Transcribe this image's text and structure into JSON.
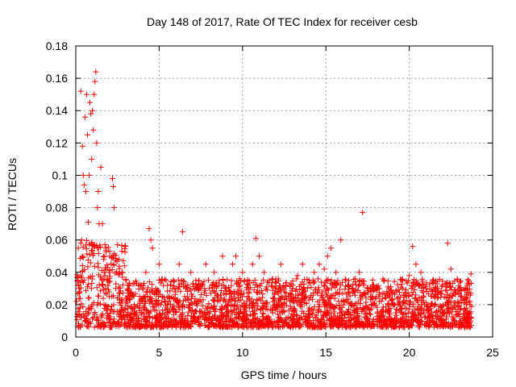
{
  "chart_data": {
    "type": "scatter",
    "title": "Day 148 of 2017, Rate Of TEC Index for receiver cesb",
    "xlabel": "GPS time / hours",
    "ylabel": "ROTI / TECUs",
    "xlim": [
      0,
      25
    ],
    "ylim": [
      0,
      0.18
    ],
    "x_ticks": [
      0,
      5,
      10,
      15,
      20,
      25
    ],
    "x_tick_labels": [
      "0",
      "5",
      "10",
      "15",
      "20",
      "25"
    ],
    "y_ticks": [
      0,
      0.02,
      0.04,
      0.06,
      0.08,
      0.1,
      0.12,
      0.14,
      0.16,
      0.18
    ],
    "y_tick_labels": [
      "0",
      "0.02",
      "0.04",
      "0.06",
      "0.08",
      "0.1",
      "0.12",
      "0.14",
      "0.16",
      "0.18"
    ],
    "grid": true,
    "marker": "+",
    "series": [
      {
        "name": "ROTI",
        "color": "#ff0000",
        "points": [
          [
            0.05,
            0.022
          ],
          [
            0.1,
            0.035
          ],
          [
            0.15,
            0.055
          ],
          [
            0.2,
            0.03
          ],
          [
            0.25,
            0.018
          ],
          [
            0.3,
            0.152
          ],
          [
            0.35,
            0.06
          ],
          [
            0.4,
            0.118
          ],
          [
            0.45,
            0.1
          ],
          [
            0.5,
            0.094
          ],
          [
            0.55,
            0.136
          ],
          [
            0.6,
            0.09
          ],
          [
            0.65,
            0.15
          ],
          [
            0.7,
            0.125
          ],
          [
            0.75,
            0.071
          ],
          [
            0.8,
            0.1
          ],
          [
            0.85,
            0.145
          ],
          [
            0.9,
            0.138
          ],
          [
            0.95,
            0.11
          ],
          [
            1.0,
            0.14
          ],
          [
            1.05,
            0.128
          ],
          [
            1.1,
            0.15
          ],
          [
            1.15,
            0.158
          ],
          [
            1.2,
            0.164
          ],
          [
            1.25,
            0.12
          ],
          [
            1.3,
            0.08
          ],
          [
            1.35,
            0.09
          ],
          [
            1.4,
            0.07
          ],
          [
            1.5,
            0.105
          ],
          [
            1.6,
            0.07
          ],
          [
            1.7,
            0.05
          ],
          [
            1.8,
            0.055
          ],
          [
            1.9,
            0.035
          ],
          [
            2.0,
            0.04
          ],
          [
            2.2,
            0.098
          ],
          [
            2.25,
            0.093
          ],
          [
            2.3,
            0.08
          ],
          [
            2.4,
            0.03
          ],
          [
            2.6,
            0.048
          ],
          [
            2.8,
            0.04
          ],
          [
            3.0,
            0.035
          ],
          [
            3.2,
            0.025
          ],
          [
            3.5,
            0.02
          ],
          [
            3.8,
            0.018
          ],
          [
            4.0,
            0.022
          ],
          [
            4.2,
            0.04
          ],
          [
            4.4,
            0.067
          ],
          [
            4.5,
            0.06
          ],
          [
            4.6,
            0.055
          ],
          [
            4.8,
            0.03
          ],
          [
            5.0,
            0.045
          ],
          [
            5.2,
            0.025
          ],
          [
            5.5,
            0.02
          ],
          [
            5.8,
            0.03
          ],
          [
            6.0,
            0.03
          ],
          [
            6.2,
            0.045
          ],
          [
            6.4,
            0.065
          ],
          [
            6.6,
            0.03
          ],
          [
            6.9,
            0.04
          ],
          [
            7.2,
            0.035
          ],
          [
            7.5,
            0.03
          ],
          [
            7.8,
            0.045
          ],
          [
            8.0,
            0.03
          ],
          [
            8.3,
            0.04
          ],
          [
            8.6,
            0.035
          ],
          [
            8.8,
            0.05
          ],
          [
            9.0,
            0.03
          ],
          [
            9.4,
            0.045
          ],
          [
            9.6,
            0.05
          ],
          [
            10.0,
            0.04
          ],
          [
            10.3,
            0.035
          ],
          [
            10.6,
            0.045
          ],
          [
            10.8,
            0.061
          ],
          [
            11.0,
            0.05
          ],
          [
            11.3,
            0.04
          ],
          [
            11.6,
            0.035
          ],
          [
            12.0,
            0.03
          ],
          [
            12.3,
            0.045
          ],
          [
            12.6,
            0.032
          ],
          [
            13.0,
            0.03
          ],
          [
            13.3,
            0.038
          ],
          [
            13.6,
            0.045
          ],
          [
            14.0,
            0.035
          ],
          [
            14.3,
            0.04
          ],
          [
            14.6,
            0.045
          ],
          [
            14.9,
            0.042
          ],
          [
            15.1,
            0.05
          ],
          [
            15.3,
            0.055
          ],
          [
            15.6,
            0.04
          ],
          [
            15.9,
            0.06
          ],
          [
            16.2,
            0.035
          ],
          [
            16.6,
            0.03
          ],
          [
            17.0,
            0.04
          ],
          [
            17.2,
            0.077
          ],
          [
            17.5,
            0.03
          ],
          [
            17.8,
            0.025
          ],
          [
            18.2,
            0.03
          ],
          [
            18.5,
            0.035
          ],
          [
            18.8,
            0.03
          ],
          [
            19.2,
            0.028
          ],
          [
            19.6,
            0.03
          ],
          [
            20.0,
            0.038
          ],
          [
            20.2,
            0.056
          ],
          [
            20.4,
            0.045
          ],
          [
            20.7,
            0.04
          ],
          [
            21.0,
            0.03
          ],
          [
            21.4,
            0.028
          ],
          [
            21.7,
            0.03
          ],
          [
            22.0,
            0.032
          ],
          [
            22.3,
            0.058
          ],
          [
            22.5,
            0.042
          ],
          [
            22.8,
            0.028
          ],
          [
            23.1,
            0.025
          ],
          [
            23.4,
            0.03
          ],
          [
            23.7,
            0.039
          ]
        ]
      }
    ]
  }
}
